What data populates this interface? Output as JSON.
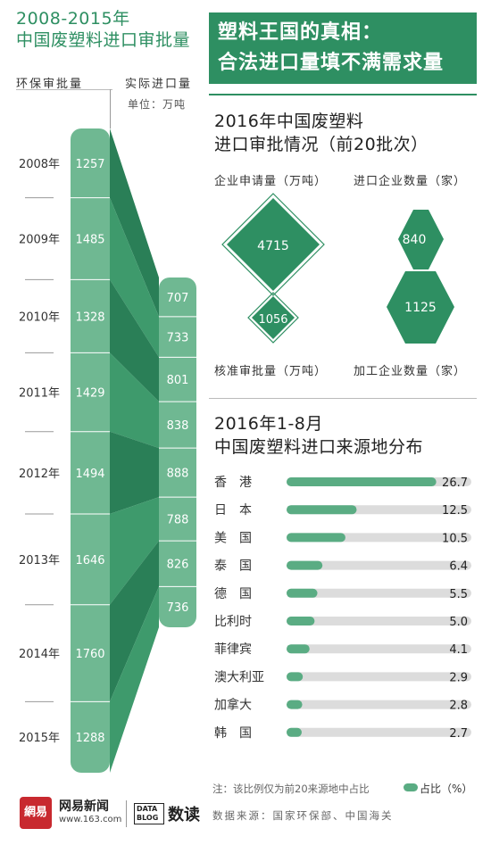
{
  "left": {
    "title_line1": "2008-2015年",
    "title_line2": "中国废塑料进口审批量",
    "col_approved": "环保审批量",
    "col_actual": "实际进口量",
    "unit": "单位：万吨"
  },
  "banner": {
    "line1": "塑料王国的真相：",
    "line2": "合法进口量填不满需求量"
  },
  "approval_section": {
    "title_line1": "2016年中国废塑料",
    "title_line2": "进口审批情况（前20批次）",
    "label_applied": "企业申请量（万吨）",
    "label_importers": "进口企业数量（家）",
    "label_approved": "核准审批量（万吨）",
    "label_processors": "加工企业数量（家）",
    "applied": "4715",
    "approved": "1056",
    "importers": "840",
    "processors": "1125"
  },
  "source_section": {
    "title_line1": "2016年1-8月",
    "title_line2": "中国废塑料进口来源地分布",
    "note": "注：该比例仅为前20来源地中占比",
    "legend": "占比（%）",
    "source": "数据来源：国家环保部、中国海关"
  },
  "footer": {
    "brand": "网易新闻",
    "url": "www.163.com",
    "logo_text": "DATA BLOG",
    "dushu": "数读",
    "brand_logo": "網易"
  },
  "colors": {
    "accent": "#2e8f62",
    "light": "#6fb892",
    "bar_bg": "#dcdcdc"
  },
  "chart_data": [
    {
      "type": "bar",
      "title": "2008-2015年 中国废塑料进口审批量",
      "categories": [
        "2008年",
        "2009年",
        "2010年",
        "2011年",
        "2012年",
        "2013年",
        "2014年",
        "2015年"
      ],
      "series": [
        {
          "name": "环保审批量",
          "values": [
            1257,
            1485,
            1328,
            1429,
            1494,
            1646,
            1760,
            1288
          ]
        },
        {
          "name": "实际进口量",
          "values": [
            707,
            733,
            801,
            838,
            888,
            788,
            826,
            736
          ]
        }
      ],
      "unit": "万吨"
    },
    {
      "type": "bar",
      "title": "2016年1-8月 中国废塑料进口来源地分布",
      "categories": [
        "香港",
        "日本",
        "美国",
        "泰国",
        "德国",
        "比利时",
        "菲律宾",
        "澳大利亚",
        "加拿大",
        "韩国"
      ],
      "display_labels": [
        "香　港",
        "日　本",
        "美　国",
        "泰　国",
        "德　国",
        "比利时",
        "菲律宾",
        "澳大利亚",
        "加拿大",
        "韩　国"
      ],
      "values": [
        26.7,
        12.5,
        10.5,
        6.4,
        5.5,
        5.0,
        4.1,
        2.9,
        2.8,
        2.7
      ],
      "value_labels": [
        "26.7",
        "12.5",
        "10.5",
        "6.4",
        "5.5",
        "5.0",
        "4.1",
        "2.9",
        "2.8",
        "2.7"
      ],
      "xlim": [
        0,
        30
      ],
      "legend": "占比（%）"
    }
  ]
}
